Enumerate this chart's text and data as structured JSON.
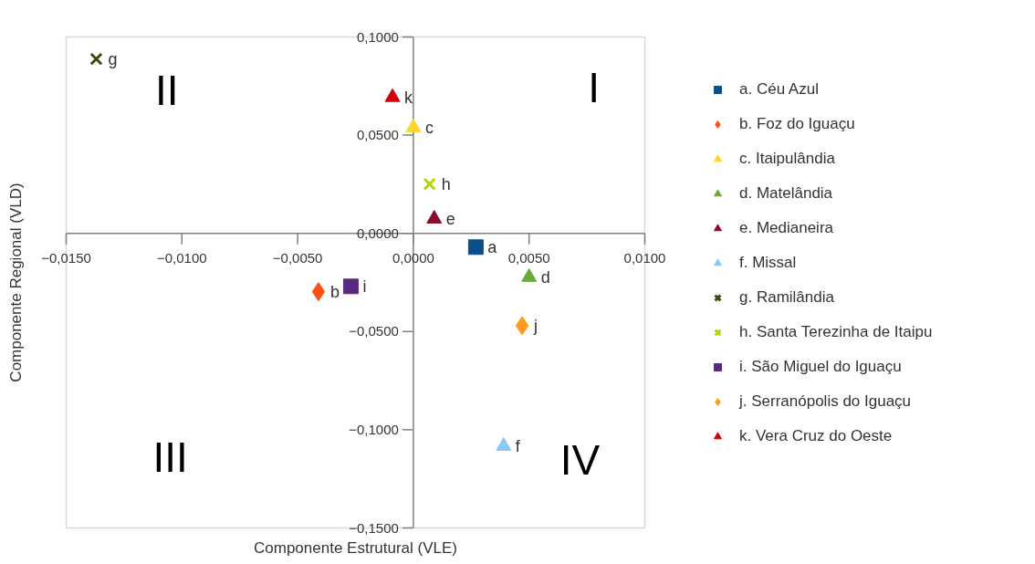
{
  "chart_data": {
    "type": "scatter",
    "xlabel": "Componente Estrutural (VLE)",
    "ylabel": "Componente Regional (VLD)",
    "xlim": [
      -0.015,
      0.01
    ],
    "ylim": [
      -0.15,
      0.1
    ],
    "xticks": [
      {
        "value": -0.015,
        "label": "−0,0150"
      },
      {
        "value": -0.01,
        "label": "−0,0100"
      },
      {
        "value": -0.005,
        "label": "−0,0050"
      },
      {
        "value": 0,
        "label": "0,0000"
      },
      {
        "value": 0.005,
        "label": "0,0050"
      },
      {
        "value": 0.01,
        "label": "0,0100"
      }
    ],
    "yticks": [
      {
        "value": 0.1,
        "label": "0,1000"
      },
      {
        "value": 0.05,
        "label": "0,0500"
      },
      {
        "value": 0,
        "label": "0,0000"
      },
      {
        "value": -0.05,
        "label": "−0,0500"
      },
      {
        "value": -0.1,
        "label": "−0,1000"
      },
      {
        "value": -0.15,
        "label": "−0,1500"
      }
    ],
    "grid": false,
    "legend": "right",
    "series": [
      {
        "name": "a. Céu Azul",
        "color": "#0a4f8c",
        "marker": "square",
        "x": [
          0.0027
        ],
        "values": [
          -0.007
        ]
      },
      {
        "name": "b. Foz do Iguaçu",
        "color": "#ff5014",
        "marker": "diamond",
        "x": [
          -0.0041
        ],
        "values": [
          -0.0297
        ]
      },
      {
        "name": "c. Itaipulândia",
        "color": "#ffd52a",
        "marker": "triangle",
        "x": [
          0.0
        ],
        "values": [
          0.0539
        ]
      },
      {
        "name": "d. Matelândia",
        "color": "#6aaa3c",
        "marker": "triangle",
        "x": [
          0.005
        ],
        "values": [
          -0.0223
        ]
      },
      {
        "name": "e. Medianeira",
        "color": "#8a0a2a",
        "marker": "triangle",
        "x": [
          0.0009
        ],
        "values": [
          0.0074
        ]
      },
      {
        "name": "f. Missal",
        "color": "#8cc8f5",
        "marker": "triangle",
        "x": [
          0.0039
        ],
        "values": [
          -0.1083
        ]
      },
      {
        "name": "g. Ramilândia",
        "color": "#3a4a0a",
        "marker": "cross",
        "x": [
          -0.0137
        ],
        "values": [
          0.0888
        ]
      },
      {
        "name": "h. Santa Terezinha de Itaipu",
        "color": "#b8d400",
        "marker": "cross",
        "x": [
          0.0007
        ],
        "values": [
          0.0251
        ]
      },
      {
        "name": "i. São Miguel do Iguaçu",
        "color": "#5a2a80",
        "marker": "square",
        "x": [
          -0.0027
        ],
        "values": [
          -0.027
        ]
      },
      {
        "name": "j. Serranópolis do Iguaçu",
        "color": "#ff9a1a",
        "marker": "diamond",
        "x": [
          0.0047
        ],
        "values": [
          -0.047
        ]
      },
      {
        "name": "k. Vera Cruz do Oeste",
        "color": "#d0000f",
        "marker": "triangle",
        "x": [
          -0.0009
        ],
        "values": [
          0.0693
        ]
      }
    ],
    "annotations": [
      {
        "text": "a",
        "x": 0.0027,
        "y": -0.007
      },
      {
        "text": "b",
        "x": -0.0041,
        "y": -0.0297
      },
      {
        "text": "c",
        "x": 0.0,
        "y": 0.0539
      },
      {
        "text": "d",
        "x": 0.005,
        "y": -0.0223
      },
      {
        "text": "e",
        "x": 0.0009,
        "y": 0.0074
      },
      {
        "text": "f",
        "x": 0.0039,
        "y": -0.1083
      },
      {
        "text": "g",
        "x": -0.0137,
        "y": 0.0888
      },
      {
        "text": "h",
        "x": 0.0007,
        "y": 0.0251
      },
      {
        "text": "i",
        "x": -0.0027,
        "y": -0.027
      },
      {
        "text": "j",
        "x": 0.0047,
        "y": -0.047
      },
      {
        "text": "k",
        "x": -0.0009,
        "y": 0.0693
      },
      "I",
      "II",
      "III",
      "IV"
    ]
  }
}
